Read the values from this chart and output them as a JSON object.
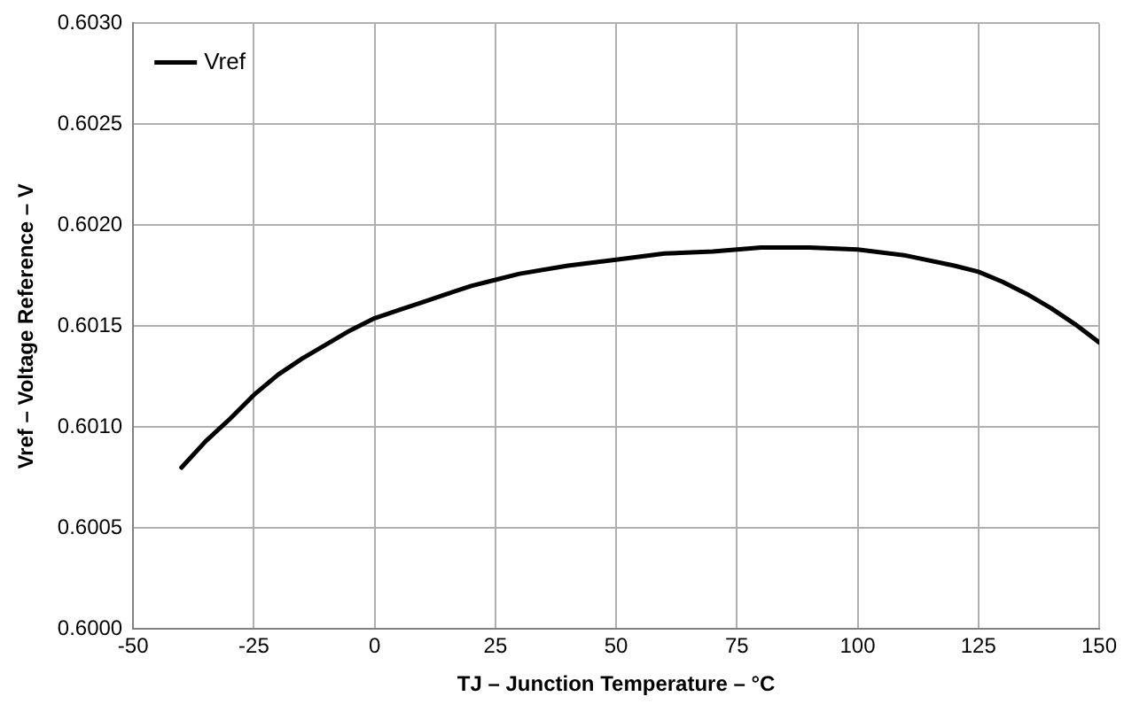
{
  "chart_data": {
    "type": "line",
    "xlabel": "TJ – Junction Temperature – °C",
    "ylabel": "Vref – Voltage Reference – V",
    "xlim": [
      -50,
      150
    ],
    "xticks": [
      -50,
      -25,
      0,
      25,
      50,
      75,
      100,
      125,
      150
    ],
    "ylim": [
      0.6,
      0.603
    ],
    "yticks": [
      {
        "value": 0.6,
        "label": "0.6000"
      },
      {
        "value": 0.6005,
        "label": "0.6005"
      },
      {
        "value": 0.601,
        "label": "0.6010"
      },
      {
        "value": 0.6015,
        "label": "0.6015"
      },
      {
        "value": 0.602,
        "label": "0.6020"
      },
      {
        "value": 0.6025,
        "label": "0.6025"
      },
      {
        "value": 0.603,
        "label": "0.6030"
      }
    ],
    "grid": true,
    "legend": "top left",
    "marker": "none",
    "line_style": "solid",
    "series": [
      {
        "name": "Vref",
        "color": "#000000",
        "x": [
          -40,
          -35,
          -30,
          -25,
          -20,
          -15,
          -10,
          -5,
          0,
          5,
          10,
          15,
          20,
          25,
          30,
          40,
          50,
          60,
          70,
          80,
          90,
          100,
          110,
          120,
          125,
          130,
          135,
          140,
          145,
          150
        ],
        "values": [
          0.6008,
          0.60093,
          0.60104,
          0.60116,
          0.60126,
          0.60134,
          0.60141,
          0.60148,
          0.60154,
          0.60158,
          0.60162,
          0.60166,
          0.6017,
          0.60173,
          0.60176,
          0.6018,
          0.60183,
          0.60186,
          0.60187,
          0.60189,
          0.60189,
          0.60188,
          0.60185,
          0.6018,
          0.60177,
          0.60172,
          0.60166,
          0.60159,
          0.60151,
          0.60142
        ]
      }
    ]
  }
}
